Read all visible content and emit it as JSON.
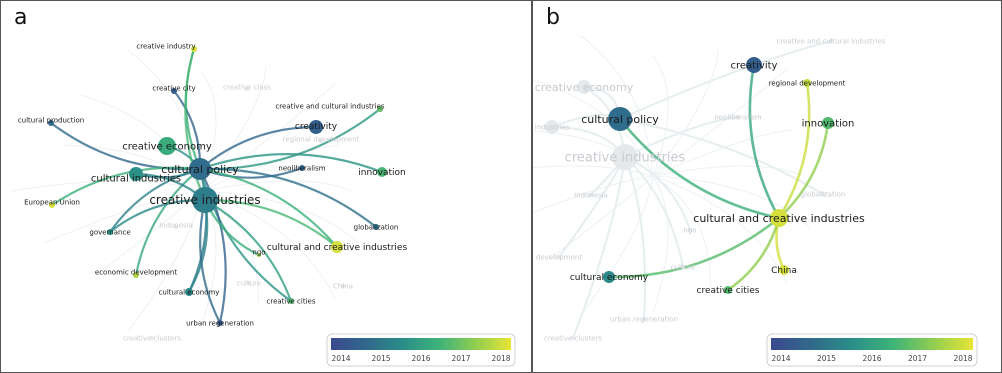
{
  "colors": {
    "scale": [
      "#3b4890",
      "#31698c",
      "#2a8f88",
      "#3db27a",
      "#8fcd50",
      "#e8e537"
    ],
    "faded_label": "#c8cbd0",
    "faded_node": "#e2e7ea",
    "faded_edge": "#eef1f3",
    "frame": "#555555"
  },
  "panels": [
    {
      "letter": "a",
      "legend": {
        "ticks": [
          "2014",
          "2015",
          "2016",
          "2017",
          "2018"
        ]
      },
      "nodes": [
        {
          "label": "creative industry",
          "year": 2018,
          "size": 3,
          "faded": false
        },
        {
          "label": "creative city",
          "year": 2014.2,
          "size": 3,
          "faded": false
        },
        {
          "label": "creative class",
          "year": 2016,
          "size": 2,
          "faded": true
        },
        {
          "label": "cultural production",
          "year": 2014.5,
          "size": 3,
          "faded": false
        },
        {
          "label": "creative economy",
          "year": 2016.2,
          "size": 9,
          "faded": false
        },
        {
          "label": "cultural industries",
          "year": 2015.5,
          "size": 7,
          "faded": false
        },
        {
          "label": "cultural policy",
          "year": 2014.6,
          "size": 11,
          "faded": false
        },
        {
          "label": "creative industries",
          "year": 2015,
          "size": 13,
          "faded": false
        },
        {
          "label": "creative and cultural industries",
          "year": 2016.8,
          "size": 3,
          "faded": false
        },
        {
          "label": "creativity",
          "year": 2014.3,
          "size": 7,
          "faded": false
        },
        {
          "label": "regional development",
          "year": 2017,
          "size": 2,
          "faded": true
        },
        {
          "label": "neoliberalism",
          "year": 2014.4,
          "size": 3,
          "faded": false
        },
        {
          "label": "innovation",
          "year": 2016.5,
          "size": 5,
          "faded": false
        },
        {
          "label": "European Union",
          "year": 2018,
          "size": 3,
          "faded": false
        },
        {
          "label": "Indonesia",
          "year": 2016,
          "size": 2,
          "faded": true
        },
        {
          "label": "globalization",
          "year": 2014.8,
          "size": 3,
          "faded": false
        },
        {
          "label": "governance",
          "year": 2015.6,
          "size": 3,
          "faded": false
        },
        {
          "label": "ngo",
          "year": 2017.5,
          "size": 2,
          "faded": false
        },
        {
          "label": "cultural and creative industries",
          "year": 2018,
          "size": 6,
          "faded": false
        },
        {
          "label": "economic development",
          "year": 2017.6,
          "size": 3,
          "faded": false
        },
        {
          "label": "culture",
          "year": 2015,
          "size": 2,
          "faded": true
        },
        {
          "label": "China",
          "year": 2018,
          "size": 2,
          "faded": true
        },
        {
          "label": "cultural economy",
          "year": 2015.3,
          "size": 4,
          "faded": false
        },
        {
          "label": "creative cities",
          "year": 2016.6,
          "size": 3,
          "faded": false
        },
        {
          "label": "urban regeneration",
          "year": 2014.1,
          "size": 3,
          "faded": false
        },
        {
          "label": "creative clusters",
          "year": 2016,
          "size": 2,
          "faded": true
        }
      ]
    },
    {
      "letter": "b",
      "legend": {
        "ticks": [
          "2014",
          "2015",
          "2016",
          "2017",
          "2018"
        ]
      },
      "nodes": [
        {
          "label": "creative and cultural industries",
          "year": 2016.8,
          "size": 2,
          "faded": true
        },
        {
          "label": "creative economy",
          "year": 2016,
          "size": 7,
          "faded": true
        },
        {
          "label": "creativity",
          "year": 2014.2,
          "size": 8,
          "faded": false
        },
        {
          "label": "regional development",
          "year": 2017.8,
          "size": 4,
          "faded": false
        },
        {
          "label": "cultural policy",
          "year": 2014.6,
          "size": 12,
          "faded": false
        },
        {
          "label": "industries",
          "year": 2015,
          "size": 7,
          "faded": true
        },
        {
          "label": "neoliberalism",
          "year": 2014.4,
          "size": 2,
          "faded": true
        },
        {
          "label": "innovation",
          "year": 2016.6,
          "size": 6,
          "faded": false
        },
        {
          "label": "creative industries",
          "year": 2015,
          "size": 13,
          "faded": true
        },
        {
          "label": "Indonesia",
          "year": 2016,
          "size": 2,
          "faded": true
        },
        {
          "label": "globalization",
          "year": 2014.8,
          "size": 2,
          "faded": true
        },
        {
          "label": "cultural and creative industries",
          "year": 2018,
          "size": 9,
          "faded": false
        },
        {
          "label": "development",
          "year": 2017.6,
          "size": 2,
          "faded": true
        },
        {
          "label": "ngo",
          "year": 2017.5,
          "size": 2,
          "faded": true
        },
        {
          "label": "culture",
          "year": 2015,
          "size": 2,
          "faded": true
        },
        {
          "label": "cultural economy",
          "year": 2015.3,
          "size": 6,
          "faded": false
        },
        {
          "label": "China",
          "year": 2018,
          "size": 5,
          "faded": false
        },
        {
          "label": "creative cities",
          "year": 2016.6,
          "size": 4,
          "faded": false
        },
        {
          "label": "urban regeneration",
          "year": 2014.1,
          "size": 2,
          "faded": true
        },
        {
          "label": "creative clusters",
          "year": 2016,
          "size": 2,
          "faded": true
        }
      ]
    }
  ]
}
